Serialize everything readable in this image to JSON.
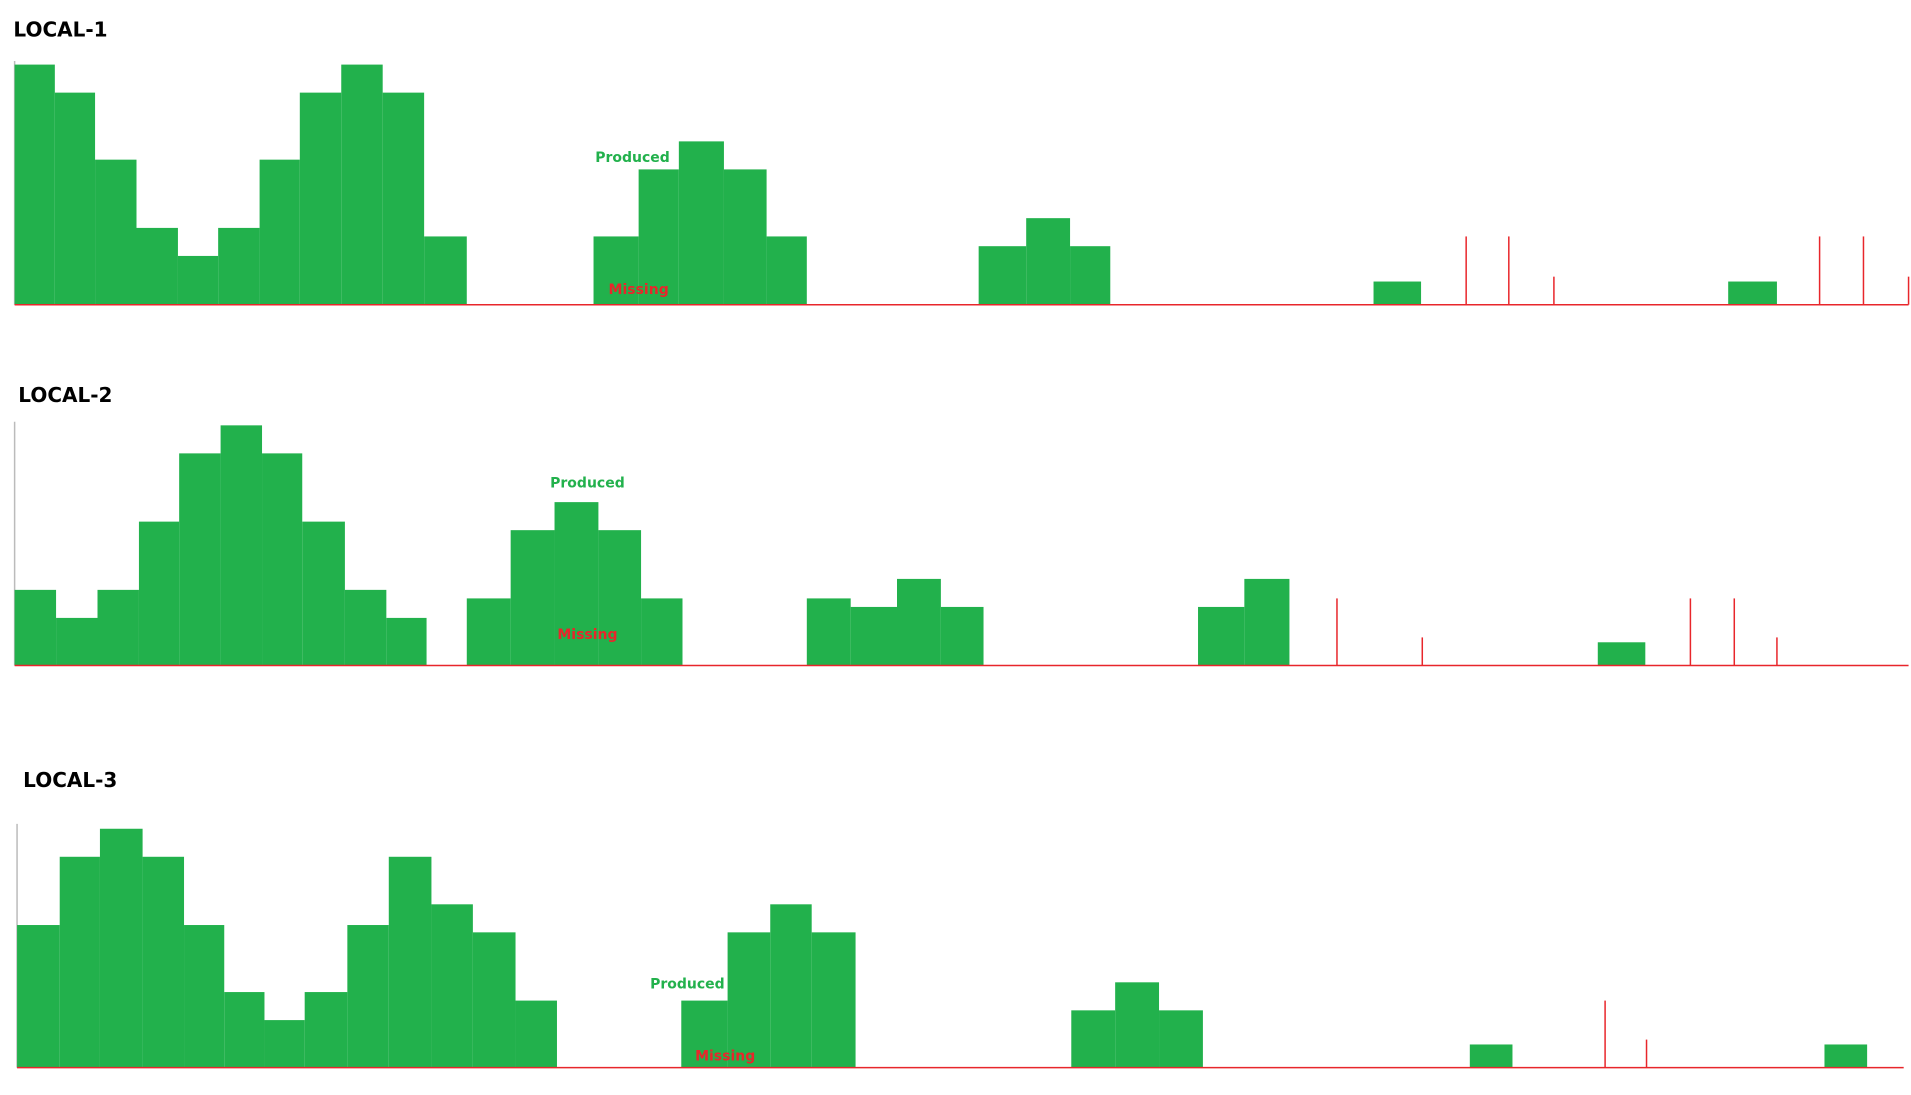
{
  "chart_data": [
    {
      "type": "histogram",
      "title": "LOCAL-1",
      "xlim": [
        0,
        1568
      ],
      "ylim": [
        0,
        200
      ],
      "bins": [
        12,
        45,
        78,
        112,
        146,
        179,
        213,
        246,
        280,
        314,
        348,
        383,
        487,
        524,
        557,
        594,
        629,
        662,
        803,
        842,
        878,
        911,
        1127,
        1166,
        1418,
        1458,
        1566
      ],
      "series": [
        {
          "name": "Produced",
          "color": "#22b14c",
          "values": [
            197,
            174,
            119,
            63,
            40,
            63,
            119,
            174,
            197,
            174,
            56,
            0,
            56,
            111,
            134,
            111,
            56,
            0,
            48,
            71,
            48,
            0,
            19,
            0,
            19,
            0
          ]
        },
        {
          "name": "Missing",
          "color": "#e8262b",
          "x": [
            1203,
            1238,
            1275,
            1493,
            1529,
            1566
          ],
          "values": [
            56,
            56,
            23,
            56,
            56,
            23
          ]
        }
      ]
    },
    {
      "type": "histogram",
      "title": "LOCAL-2",
      "xlim": [
        0,
        1568
      ],
      "ylim": [
        0,
        200
      ],
      "bins": [
        12,
        46,
        80,
        114,
        147,
        181,
        215,
        248,
        283,
        317,
        350,
        383,
        419,
        455,
        491,
        526,
        560,
        662,
        698,
        736,
        772,
        807,
        983,
        1021,
        1058,
        1311,
        1350,
        1566
      ],
      "series": [
        {
          "name": "Produced",
          "color": "#22b14c",
          "values": [
            62,
            39,
            62,
            118,
            174,
            197,
            174,
            118,
            62,
            39,
            0,
            55,
            111,
            134,
            111,
            55,
            0,
            55,
            48,
            71,
            48,
            0,
            48,
            71,
            0,
            19,
            0
          ]
        },
        {
          "name": "Missing",
          "color": "#e8262b",
          "x": [
            1097,
            1167,
            1387,
            1423,
            1458
          ],
          "values": [
            55,
            23,
            55,
            55,
            23
          ]
        }
      ]
    },
    {
      "type": "histogram",
      "title": "LOCAL-3",
      "xlim": [
        0,
        1568
      ],
      "ylim": [
        0,
        200
      ],
      "bins": [
        14,
        49,
        82,
        117,
        151,
        184,
        217,
        250,
        285,
        319,
        354,
        388,
        423,
        457,
        559,
        597,
        632,
        666,
        702,
        879,
        915,
        951,
        987,
        1206,
        1241,
        1497,
        1532,
        1562
      ],
      "series": [
        {
          "name": "Produced",
          "color": "#22b14c",
          "values": [
            117,
            173,
            196,
            173,
            117,
            62,
            39,
            62,
            117,
            173,
            134,
            111,
            55,
            0,
            55,
            111,
            134,
            111,
            0,
            47,
            70,
            47,
            0,
            19,
            0,
            19,
            0
          ]
        },
        {
          "name": "Missing",
          "color": "#e8262b",
          "x": [
            1317,
            1351
          ],
          "values": [
            55,
            23
          ]
        }
      ]
    }
  ]
}
